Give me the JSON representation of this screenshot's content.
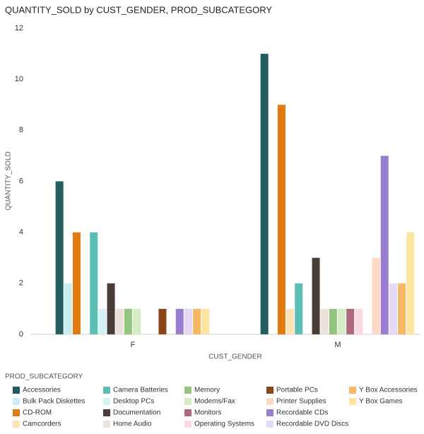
{
  "chart_data": {
    "type": "bar",
    "title": "QUANTITY_SOLD by CUST_GENDER, PROD_SUBCATEGORY",
    "x_label": "CUST_GENDER",
    "y_label": "QUANTITY_SOLD",
    "legend_title": "PROD_SUBCATEGORY",
    "categories": [
      "F",
      "M"
    ],
    "ylim": [
      0,
      12
    ],
    "yticks": [
      0,
      2,
      4,
      6,
      8,
      10,
      12
    ],
    "grid": false,
    "series": [
      {
        "name": "Accessories",
        "color": "#225e5f",
        "values": [
          6,
          11
        ]
      },
      {
        "name": "Bulk Pack Diskettes",
        "color": "#c8eef3",
        "values": [
          2,
          null
        ]
      },
      {
        "name": "CD-ROM",
        "color": "#e07b13",
        "values": [
          4,
          9
        ]
      },
      {
        "name": "Camcorders",
        "color": "#fde3b3",
        "values": [
          null,
          1
        ]
      },
      {
        "name": "Camera Batteries",
        "color": "#5cbdb5",
        "values": [
          4,
          2
        ]
      },
      {
        "name": "Desktop PCs",
        "color": "#d3f2f4",
        "values": [
          1,
          null
        ]
      },
      {
        "name": "Documentation",
        "color": "#4a3c36",
        "values": [
          2,
          3
        ]
      },
      {
        "name": "Home Audio",
        "color": "#ece2d9",
        "values": [
          1,
          1
        ]
      },
      {
        "name": "Memory",
        "color": "#94c57f",
        "values": [
          1,
          1
        ]
      },
      {
        "name": "Modems/Fax",
        "color": "#d5ecc4",
        "values": [
          1,
          1
        ]
      },
      {
        "name": "Monitors",
        "color": "#b06a7e",
        "values": [
          null,
          1
        ]
      },
      {
        "name": "Operating Systems",
        "color": "#fbd9e0",
        "values": [
          null,
          1
        ]
      },
      {
        "name": "Portable PCs",
        "color": "#8c4419",
        "values": [
          1,
          null
        ]
      },
      {
        "name": "Printer Supplies",
        "color": "#fdd8c4",
        "values": [
          null,
          3
        ]
      },
      {
        "name": "Recordable CDs",
        "color": "#9b7dd0",
        "values": [
          1,
          7
        ]
      },
      {
        "name": "Recordable DVD Discs",
        "color": "#e5d9f8",
        "values": [
          1,
          2
        ]
      },
      {
        "name": "Y Box Accessories",
        "color": "#f7b866",
        "values": [
          1,
          2
        ]
      },
      {
        "name": "Y Box Games",
        "color": "#fce3a0",
        "values": [
          1,
          4
        ]
      }
    ]
  }
}
